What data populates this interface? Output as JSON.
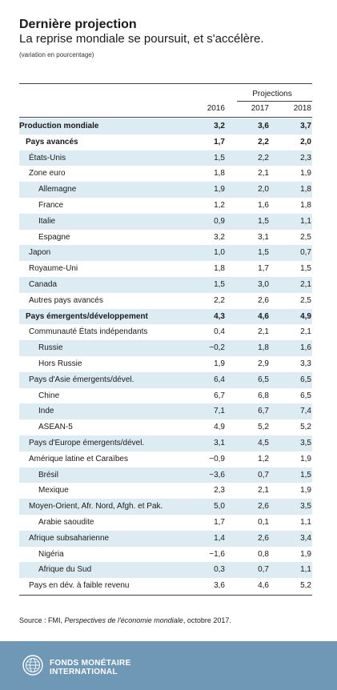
{
  "header": {
    "title": "Dernière projection",
    "subtitle": "La reprise mondiale se poursuit, et s'accélère.",
    "note": "(variation en pourcentage)"
  },
  "table": {
    "projections_label": "Projections",
    "years": [
      "2016",
      "2017",
      "2018"
    ],
    "rows": [
      {
        "label": "Production mondiale",
        "values": [
          "3,2",
          "3,6",
          "3,7"
        ]
      },
      {
        "label": "Pays avancés",
        "values": [
          "1,7",
          "2,2",
          "2,0"
        ]
      },
      {
        "label": "États-Unis",
        "values": [
          "1,5",
          "2,2",
          "2,3"
        ]
      },
      {
        "label": "Zone euro",
        "values": [
          "1,8",
          "2,1",
          "1,9"
        ]
      },
      {
        "label": "Allemagne",
        "values": [
          "1,9",
          "2,0",
          "1,8"
        ]
      },
      {
        "label": "France",
        "values": [
          "1,2",
          "1,6",
          "1,8"
        ]
      },
      {
        "label": "Italie",
        "values": [
          "0,9",
          "1,5",
          "1,1"
        ]
      },
      {
        "label": "Espagne",
        "values": [
          "3,2",
          "3,1",
          "2,5"
        ]
      },
      {
        "label": "Japon",
        "values": [
          "1,0",
          "1,5",
          "0,7"
        ]
      },
      {
        "label": "Royaume-Uni",
        "values": [
          "1,8",
          "1,7",
          "1,5"
        ]
      },
      {
        "label": "Canada",
        "values": [
          "1,5",
          "3,0",
          "2,1"
        ]
      },
      {
        "label": "Autres pays avancés",
        "values": [
          "2,2",
          "2,6",
          "2,5"
        ]
      },
      {
        "label": "Pays émergents/développement",
        "values": [
          "4,3",
          "4,6",
          "4,9"
        ]
      },
      {
        "label": "Communauté  États indépendants",
        "values": [
          "0,4",
          "2,1",
          "2,1"
        ]
      },
      {
        "label": "Russie",
        "values": [
          "−0,2",
          "1,8",
          "1,6"
        ]
      },
      {
        "label": "Hors Russie",
        "values": [
          "1,9",
          "2,9",
          "3,3"
        ]
      },
      {
        "label": "Pays d'Asie émergents/dével.",
        "values": [
          "6,4",
          "6,5",
          "6,5"
        ]
      },
      {
        "label": "Chine",
        "values": [
          "6,7",
          "6,8",
          "6,5"
        ]
      },
      {
        "label": "Inde",
        "values": [
          "7,1",
          "6,7",
          "7,4"
        ]
      },
      {
        "label": "ASEAN-5",
        "values": [
          "4,9",
          "5,2",
          "5,2"
        ]
      },
      {
        "label": "Pays d'Europe émergents/dével.",
        "values": [
          "3,1",
          "4,5",
          "3,5"
        ]
      },
      {
        "label": "Amérique latine et Caraïbes",
        "values": [
          "−0,9",
          "1,2",
          "1,9"
        ]
      },
      {
        "label": "Brésil",
        "values": [
          "−3,6",
          "0,7",
          "1,5"
        ]
      },
      {
        "label": "Mexique",
        "values": [
          "2,3",
          "2,1",
          "1,9"
        ]
      },
      {
        "label": "Moyen-Orient, Afr. Nord, Afgh. et Pak.",
        "values": [
          "5,0",
          "2,6",
          "3,5"
        ]
      },
      {
        "label": "Arabie saoudite",
        "values": [
          "1,7",
          "0,1",
          "1,1"
        ]
      },
      {
        "label": "Afrique subsaharienne",
        "values": [
          "1,4",
          "2,6",
          "3,4"
        ]
      },
      {
        "label": "Nigéria",
        "values": [
          "−1,6",
          "0,8",
          "1,9"
        ]
      },
      {
        "label": "Afrique du Sud",
        "values": [
          "0,3",
          "0,7",
          "1,1"
        ]
      },
      {
        "label": "Pays en dév. à faible revenu",
        "values": [
          "3,6",
          "4,6",
          "5,2"
        ]
      }
    ]
  },
  "source": {
    "prefix": "Source : FMI, ",
    "title": "Perspectives de l'économie mondiale",
    "suffix": ", octobre 2017."
  },
  "footer": {
    "org_line1": "FONDS MONÉTAIRE",
    "org_line2": "INTERNATIONAL",
    "logo_icon": "imf-seal-icon",
    "background": "#6f98b6"
  },
  "colors": {
    "row_shade": "#dcecf2"
  }
}
